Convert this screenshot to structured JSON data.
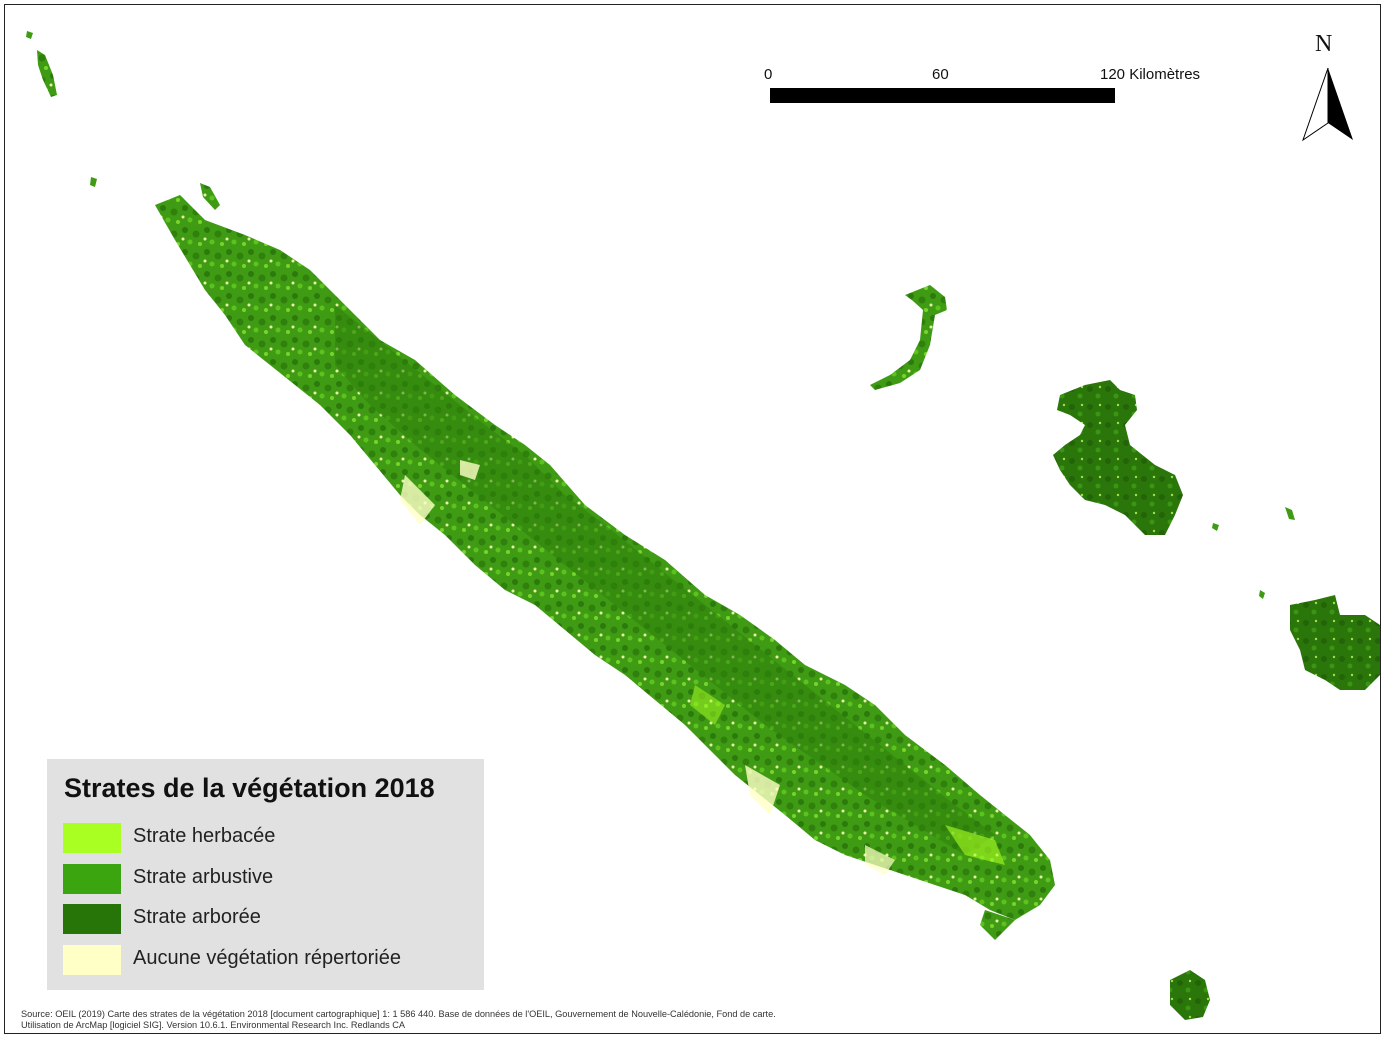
{
  "scale": {
    "tick_0": "0",
    "tick_60": "60",
    "tick_120": "120 Kilomètres"
  },
  "north_arrow": {
    "letter": "N",
    "icon": "north-arrow-icon"
  },
  "legend": {
    "title": "Strates de la végétation 2018",
    "items": [
      {
        "label": "Strate herbacée",
        "color": "#aaff22"
      },
      {
        "label": "Strate arbustive",
        "color": "#3aa50f"
      },
      {
        "label": "Strate arborée",
        "color": "#277408"
      },
      {
        "label": "Aucune végétation répertoriée",
        "color": "#ffffc6"
      }
    ]
  },
  "source": {
    "line1": "Source: OEIL (2019) Carte des strates de la végétation 2018 [document cartographique] 1: 1 586 440. Base de données de l'OEIL, Gouvernement de Nouvelle-Calédonie, Fond de carte.",
    "line2": "Utilisation de ArcMap [logiciel SIG]. Version 10.6.1. Environmental Research Inc. Redlands CA"
  },
  "colors": {
    "herbaceous": "#aaff22",
    "shrub": "#3aa50f",
    "tree": "#277408",
    "none": "#ffffc6"
  }
}
